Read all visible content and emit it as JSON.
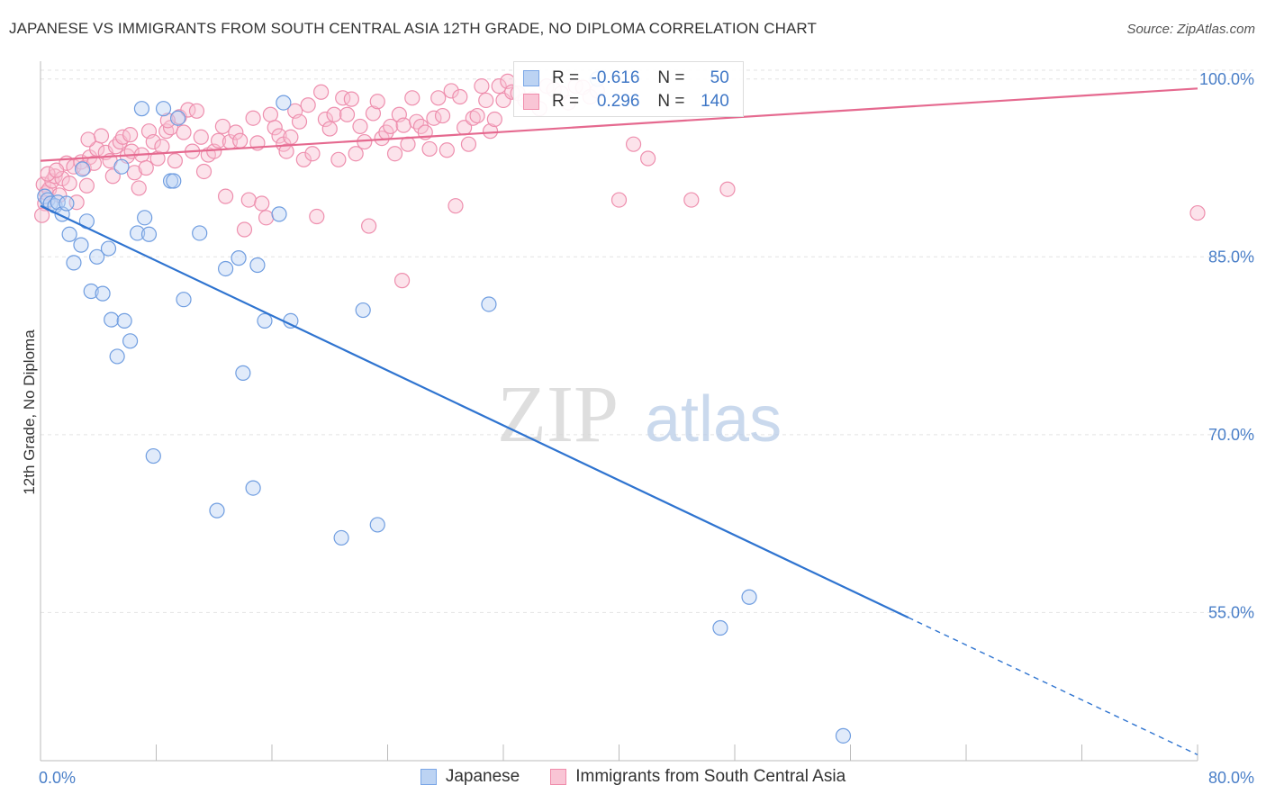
{
  "title": "JAPANESE VS IMMIGRANTS FROM SOUTH CENTRAL ASIA 12TH GRADE, NO DIPLOMA CORRELATION CHART",
  "source": "Source: ZipAtlas.com",
  "watermark": {
    "zip": "ZIP",
    "atlas": "atlas"
  },
  "legend_stats": [
    {
      "r_label": "R =",
      "r_value": "-0.616",
      "n_label": "N =",
      "n_value": "50"
    },
    {
      "r_label": "R =",
      "r_value": "0.296",
      "n_label": "N =",
      "n_value": "140"
    }
  ],
  "chart_data": {
    "type": "scatter",
    "ylabel": "12th Grade, No Diploma",
    "xlabel": "",
    "x_ticks": [
      "0.0%",
      "80.0%"
    ],
    "y_ticks": [
      "100.0%",
      "85.0%",
      "70.0%",
      "55.0%"
    ],
    "xlim": [
      0,
      80
    ],
    "ylim": [
      42.5,
      101.5
    ],
    "grid": true,
    "legend_position": "top-center",
    "series": [
      {
        "name": "Japanese",
        "color": "#7aa6e6",
        "line_color": "#2f74d0",
        "trend": {
          "x0": 0,
          "y0": 89.3,
          "x1": 80,
          "y1": 43.0,
          "solid_until": 60
        },
        "points": [
          [
            0.3,
            90.1
          ],
          [
            0.5,
            89.8
          ],
          [
            0.7,
            89.5
          ],
          [
            1.0,
            89.3
          ],
          [
            1.2,
            89.6
          ],
          [
            1.5,
            88.6
          ],
          [
            1.8,
            89.5
          ],
          [
            2.0,
            86.9
          ],
          [
            2.3,
            84.5
          ],
          [
            2.8,
            86.0
          ],
          [
            3.2,
            88.0
          ],
          [
            2.9,
            92.4
          ],
          [
            3.5,
            82.1
          ],
          [
            3.9,
            85.0
          ],
          [
            4.3,
            81.9
          ],
          [
            4.7,
            85.7
          ],
          [
            4.9,
            79.7
          ],
          [
            5.3,
            76.6
          ],
          [
            5.6,
            92.6
          ],
          [
            5.8,
            79.6
          ],
          [
            6.2,
            77.9
          ],
          [
            6.7,
            87.0
          ],
          [
            7.0,
            97.5
          ],
          [
            7.2,
            88.3
          ],
          [
            7.5,
            86.9
          ],
          [
            7.8,
            68.2
          ],
          [
            8.5,
            97.5
          ],
          [
            9.0,
            91.4
          ],
          [
            9.2,
            91.4
          ],
          [
            9.5,
            96.7
          ],
          [
            9.9,
            81.4
          ],
          [
            11.0,
            87.0
          ],
          [
            12.2,
            63.6
          ],
          [
            12.8,
            84.0
          ],
          [
            13.7,
            84.9
          ],
          [
            14.0,
            75.2
          ],
          [
            14.7,
            65.5
          ],
          [
            15.0,
            84.3
          ],
          [
            15.5,
            79.6
          ],
          [
            16.5,
            88.6
          ],
          [
            16.8,
            98.0
          ],
          [
            17.3,
            79.6
          ],
          [
            20.8,
            61.3
          ],
          [
            22.3,
            80.5
          ],
          [
            23.3,
            62.4
          ],
          [
            31.0,
            81.0
          ],
          [
            38.5,
            100.0
          ],
          [
            47.0,
            53.7
          ],
          [
            49.0,
            56.3
          ],
          [
            55.5,
            44.6
          ]
        ]
      },
      {
        "name": "Immigrants from South Central Asia",
        "color": "#f4a3bd",
        "line_color": "#e5698f",
        "trend": {
          "x0": 0,
          "y0": 93.1,
          "x1": 80,
          "y1": 99.2
        },
        "points": [
          [
            0.2,
            91.1
          ],
          [
            0.3,
            89.5
          ],
          [
            0.4,
            90.4
          ],
          [
            0.6,
            90.7
          ],
          [
            0.8,
            91.4
          ],
          [
            1.0,
            91.8
          ],
          [
            1.3,
            90.2
          ],
          [
            1.5,
            91.6
          ],
          [
            1.8,
            92.9
          ],
          [
            2.0,
            91.2
          ],
          [
            2.3,
            92.6
          ],
          [
            2.5,
            89.6
          ],
          [
            2.8,
            93.0
          ],
          [
            3.0,
            92.5
          ],
          [
            3.2,
            91.0
          ],
          [
            3.4,
            93.4
          ],
          [
            3.7,
            92.9
          ],
          [
            3.9,
            94.1
          ],
          [
            4.2,
            95.2
          ],
          [
            4.5,
            93.8
          ],
          [
            4.8,
            93.1
          ],
          [
            5.0,
            91.8
          ],
          [
            5.2,
            94.3
          ],
          [
            5.5,
            94.7
          ],
          [
            5.7,
            95.1
          ],
          [
            6.0,
            93.5
          ],
          [
            6.3,
            93.9
          ],
          [
            6.5,
            92.1
          ],
          [
            6.8,
            90.8
          ],
          [
            7.0,
            93.6
          ],
          [
            7.3,
            92.5
          ],
          [
            7.5,
            95.6
          ],
          [
            7.8,
            94.7
          ],
          [
            8.1,
            93.3
          ],
          [
            8.4,
            94.3
          ],
          [
            8.7,
            95.6
          ],
          [
            9.0,
            95.9
          ],
          [
            9.3,
            93.1
          ],
          [
            9.6,
            96.8
          ],
          [
            9.9,
            95.5
          ],
          [
            10.2,
            97.4
          ],
          [
            10.5,
            93.9
          ],
          [
            10.8,
            97.3
          ],
          [
            11.1,
            95.1
          ],
          [
            11.3,
            92.2
          ],
          [
            11.6,
            93.6
          ],
          [
            12.0,
            93.9
          ],
          [
            12.3,
            94.8
          ],
          [
            12.6,
            96.0
          ],
          [
            12.8,
            90.1
          ],
          [
            13.1,
            94.7
          ],
          [
            13.5,
            95.5
          ],
          [
            13.8,
            94.8
          ],
          [
            14.1,
            87.3
          ],
          [
            14.4,
            89.8
          ],
          [
            14.7,
            96.7
          ],
          [
            15.0,
            94.6
          ],
          [
            15.3,
            89.5
          ],
          [
            15.6,
            88.3
          ],
          [
            15.9,
            97.0
          ],
          [
            16.2,
            95.9
          ],
          [
            16.5,
            95.2
          ],
          [
            16.8,
            94.5
          ],
          [
            17.0,
            93.9
          ],
          [
            17.3,
            95.1
          ],
          [
            17.6,
            97.3
          ],
          [
            17.9,
            96.4
          ],
          [
            18.2,
            93.2
          ],
          [
            18.5,
            97.8
          ],
          [
            18.8,
            93.7
          ],
          [
            19.1,
            88.4
          ],
          [
            19.4,
            98.9
          ],
          [
            19.7,
            96.6
          ],
          [
            20.0,
            95.8
          ],
          [
            20.3,
            97.0
          ],
          [
            20.6,
            93.2
          ],
          [
            20.9,
            98.4
          ],
          [
            21.2,
            97.0
          ],
          [
            21.5,
            98.3
          ],
          [
            21.8,
            93.7
          ],
          [
            22.1,
            96.0
          ],
          [
            22.4,
            94.7
          ],
          [
            22.7,
            87.6
          ],
          [
            23.0,
            97.1
          ],
          [
            23.3,
            98.1
          ],
          [
            23.6,
            95.0
          ],
          [
            23.9,
            95.5
          ],
          [
            24.2,
            96.0
          ],
          [
            24.5,
            93.7
          ],
          [
            24.8,
            97.0
          ],
          [
            25.1,
            96.1
          ],
          [
            25.4,
            94.5
          ],
          [
            25.7,
            98.4
          ],
          [
            26.0,
            96.4
          ],
          [
            26.3,
            96.0
          ],
          [
            26.6,
            95.5
          ],
          [
            26.9,
            94.1
          ],
          [
            27.2,
            96.7
          ],
          [
            27.5,
            98.4
          ],
          [
            27.8,
            96.9
          ],
          [
            28.1,
            94.0
          ],
          [
            28.4,
            99.0
          ],
          [
            28.7,
            89.3
          ],
          [
            29.0,
            98.5
          ],
          [
            29.3,
            95.9
          ],
          [
            29.6,
            94.5
          ],
          [
            29.9,
            96.7
          ],
          [
            30.2,
            96.9
          ],
          [
            30.5,
            99.4
          ],
          [
            30.8,
            98.2
          ],
          [
            31.1,
            95.6
          ],
          [
            31.4,
            96.6
          ],
          [
            31.7,
            99.4
          ],
          [
            32.0,
            98.2
          ],
          [
            32.3,
            99.8
          ],
          [
            32.6,
            98.9
          ],
          [
            33.0,
            98.8
          ],
          [
            33.5,
            98.2
          ],
          [
            34.0,
            98.3
          ],
          [
            34.5,
            97.5
          ],
          [
            35.0,
            99.4
          ],
          [
            35.5,
            99.1
          ],
          [
            36.0,
            98.8
          ],
          [
            36.5,
            98.0
          ],
          [
            37.0,
            99.4
          ],
          [
            37.5,
            99.3
          ],
          [
            38.0,
            98.5
          ],
          [
            38.5,
            99.0
          ],
          [
            40.0,
            89.8
          ],
          [
            41.0,
            94.5
          ],
          [
            42.0,
            93.3
          ],
          [
            45.0,
            89.8
          ],
          [
            47.5,
            90.7
          ],
          [
            80.0,
            88.7
          ],
          [
            0.1,
            88.5
          ],
          [
            0.5,
            92.0
          ],
          [
            1.1,
            92.3
          ],
          [
            3.3,
            94.9
          ],
          [
            6.2,
            95.3
          ],
          [
            8.8,
            96.5
          ],
          [
            25.0,
            83.0
          ]
        ]
      }
    ]
  }
}
